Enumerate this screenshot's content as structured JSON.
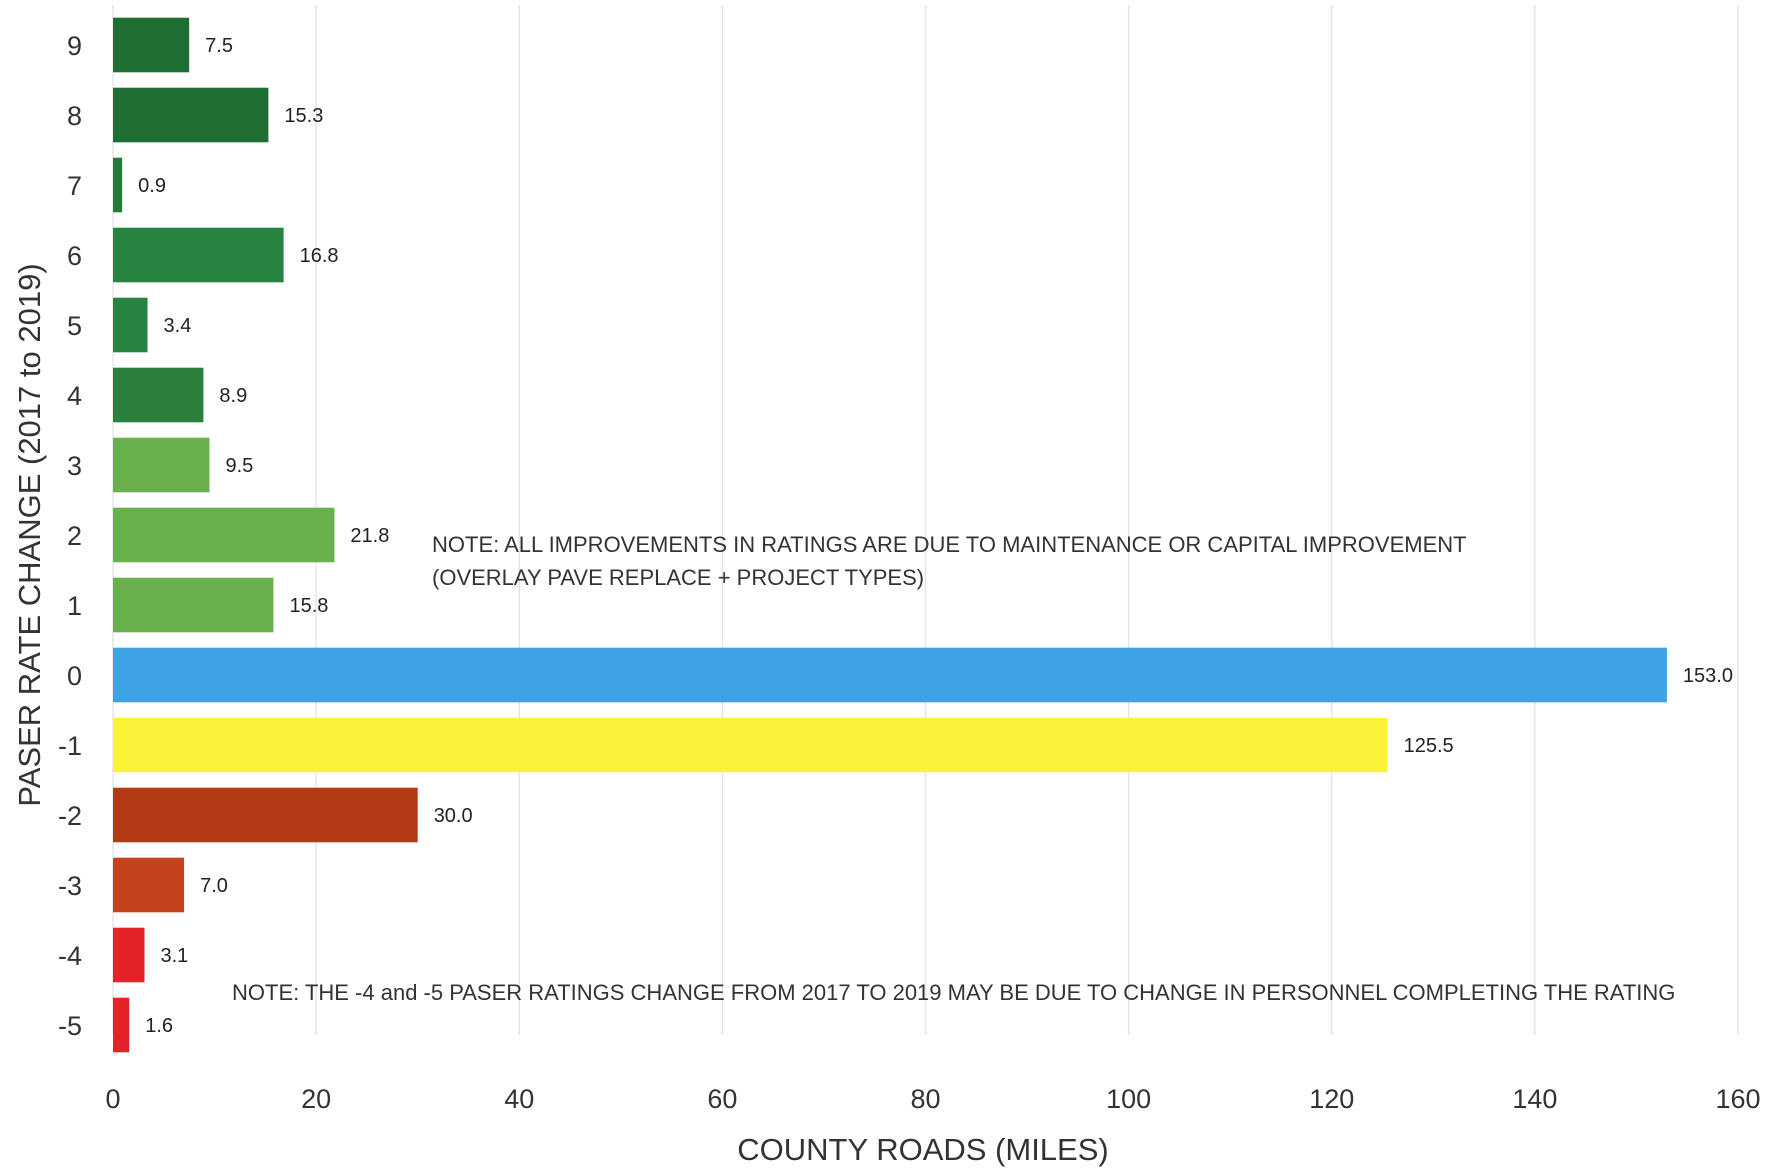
{
  "chart_data": {
    "type": "bar",
    "orientation": "horizontal",
    "categories": [
      "9",
      "8",
      "7",
      "6",
      "5",
      "4",
      "3",
      "2",
      "1",
      "0",
      "-1",
      "-2",
      "-3",
      "-4",
      "-5"
    ],
    "values": [
      7.5,
      15.3,
      0.9,
      16.8,
      3.4,
      8.9,
      9.5,
      21.8,
      15.8,
      153.0,
      125.5,
      30.0,
      7.0,
      3.1,
      1.6
    ],
    "value_labels": [
      "7.5",
      "15.3",
      "0.9",
      "16.8",
      "3.4",
      "8.9",
      "9.5",
      "21.8",
      "15.8",
      "153.0",
      "125.5",
      "30.0",
      "7.0",
      "3.1",
      "1.6"
    ],
    "colors": [
      "#1f6e34",
      "#1f6e34",
      "#237a3a",
      "#268440",
      "#268440",
      "#2a7f3c",
      "#6ab04c",
      "#6ab04c",
      "#6ab04c",
      "#3ea3e3",
      "#fbf33a",
      "#b23a14",
      "#c2431d",
      "#e0242a",
      "#e0242a"
    ],
    "xlabel": "COUNTY ROADS (MILES)",
    "ylabel": "PASER RATE CHANGE (2017 to 2019)",
    "xlim": [
      0,
      160
    ],
    "xticks": [
      0,
      20,
      40,
      60,
      80,
      100,
      120,
      140,
      160
    ],
    "grid": "vertical",
    "legend": "none",
    "annotations": [
      {
        "lines": [
          "NOTE: ALL IMPROVEMENTS IN RATINGS ARE DUE TO MAINTENANCE OR CAPITAL IMPROVEMENT",
          "(OVERLAY PAVE REPLACE + PROJECT TYPES)"
        ]
      },
      {
        "lines": [
          "NOTE: THE -4 and -5 PASER RATINGS CHANGE FROM 2017 TO 2019 MAY BE DUE TO CHANGE IN PERSONNEL COMPLETING THE RATING"
        ]
      }
    ]
  }
}
